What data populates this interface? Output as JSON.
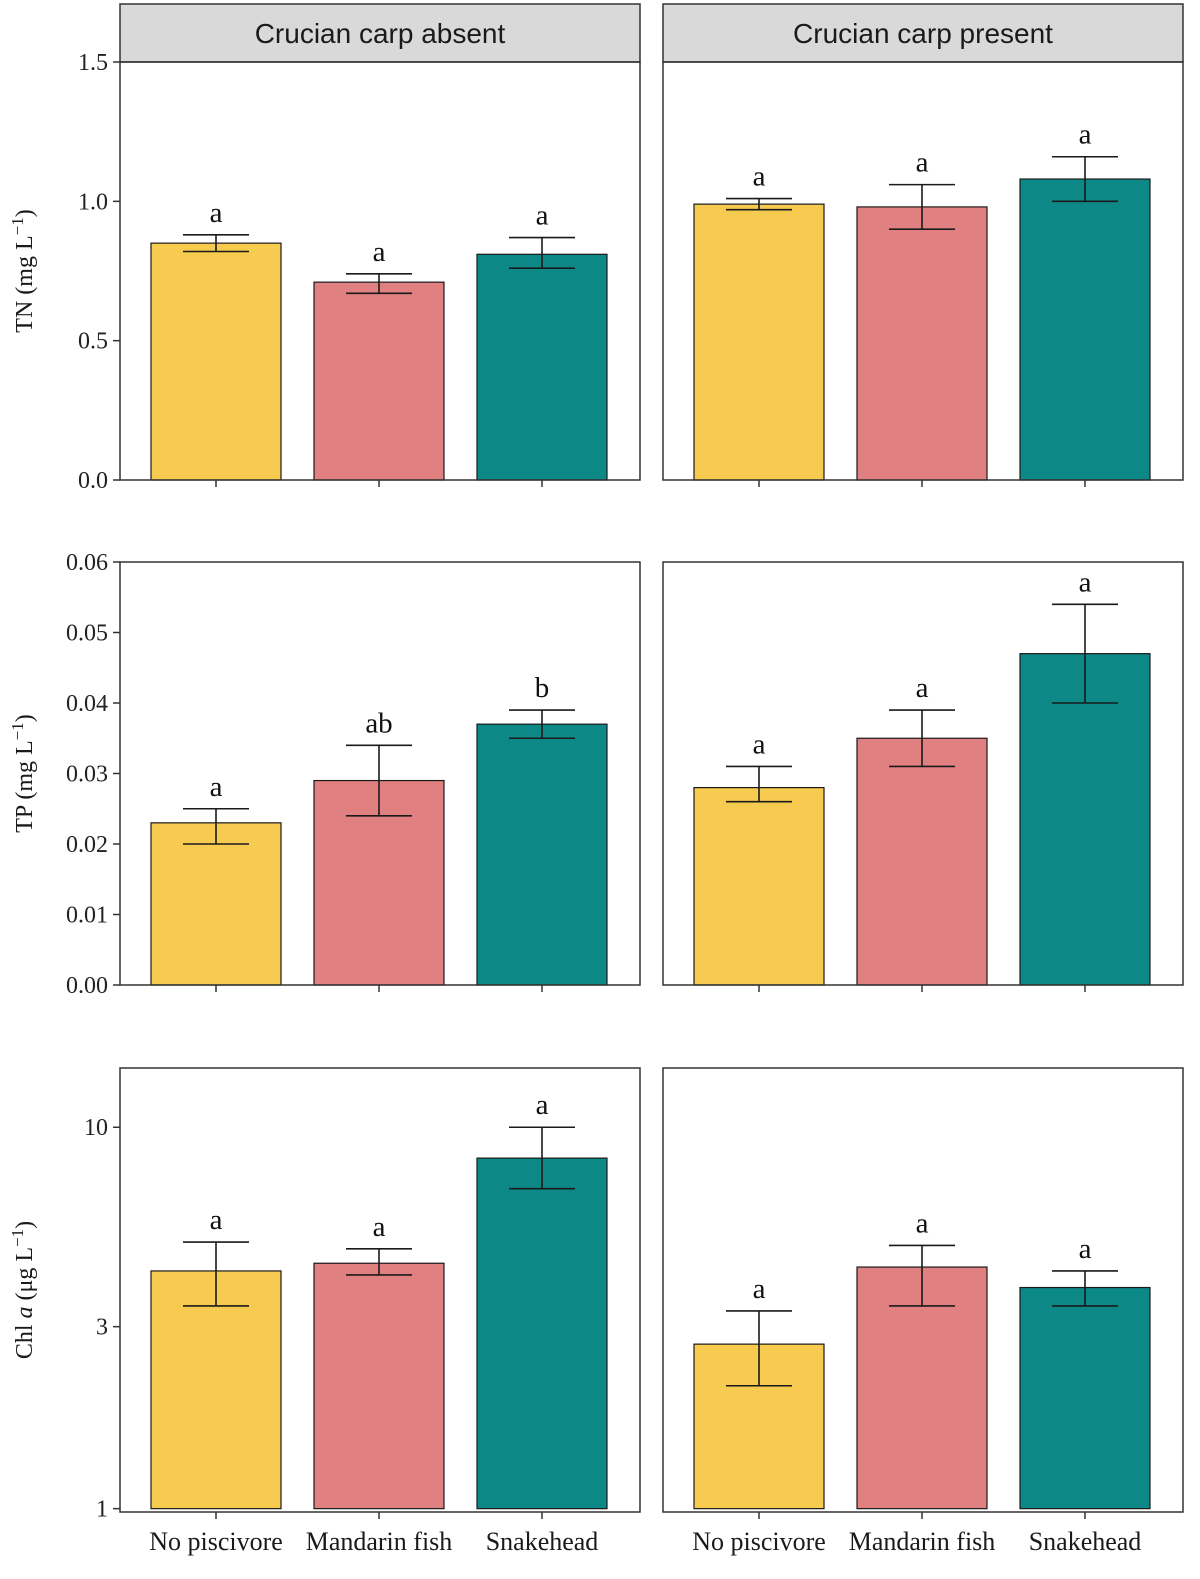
{
  "facets": [
    "Crucian carp absent",
    "Crucian carp present"
  ],
  "categories": [
    "No piscivore",
    "Mandarin fish",
    "Snakehead"
  ],
  "colors": {
    "No piscivore": "#F7CA50",
    "Mandarin fish": "#E08080",
    "Snakehead": "#0C8886",
    "strip": "#D9D9D9",
    "axis": "#333333"
  },
  "chart_data": [
    {
      "type": "bar",
      "ylabel": {
        "prefix": "TN (mg L",
        "sup": "−1",
        "suffix": ")"
      },
      "scale": "linear",
      "ylim": [
        0,
        1.5
      ],
      "yticks": [
        0,
        0.5,
        1.0,
        1.5
      ],
      "ytick_labels": [
        "0.0",
        "0.5",
        "1.0",
        "1.5"
      ],
      "series": [
        {
          "facet": "Crucian carp absent",
          "values": [
            0.85,
            0.71,
            0.81
          ],
          "err_low": [
            0.82,
            0.67,
            0.76
          ],
          "err_high": [
            0.88,
            0.74,
            0.87
          ],
          "letters": [
            "a",
            "a",
            "a"
          ]
        },
        {
          "facet": "Crucian carp present",
          "values": [
            0.99,
            0.98,
            1.08
          ],
          "err_low": [
            0.97,
            0.9,
            1.0
          ],
          "err_high": [
            1.01,
            1.06,
            1.16
          ],
          "letters": [
            "a",
            "a",
            "a"
          ]
        }
      ]
    },
    {
      "type": "bar",
      "ylabel": {
        "prefix": "TP (mg L",
        "sup": "−1",
        "suffix": ")"
      },
      "scale": "linear",
      "ylim": [
        0,
        0.06
      ],
      "yticks": [
        0,
        0.01,
        0.02,
        0.03,
        0.04,
        0.05,
        0.06
      ],
      "ytick_labels": [
        "0.00",
        "0.01",
        "0.02",
        "0.03",
        "0.04",
        "0.05",
        "0.06"
      ],
      "series": [
        {
          "facet": "Crucian carp absent",
          "values": [
            0.023,
            0.029,
            0.037
          ],
          "err_low": [
            0.02,
            0.024,
            0.035
          ],
          "err_high": [
            0.025,
            0.034,
            0.039
          ],
          "letters": [
            "a",
            "ab",
            "b"
          ]
        },
        {
          "facet": "Crucian carp present",
          "values": [
            0.028,
            0.035,
            0.047
          ],
          "err_low": [
            0.026,
            0.031,
            0.04
          ],
          "err_high": [
            0.031,
            0.039,
            0.054
          ],
          "letters": [
            "a",
            "a",
            "a"
          ]
        }
      ]
    },
    {
      "type": "bar",
      "ylabel": {
        "prefix": "Chl ",
        "italic": "a",
        "mid": " (μg L",
        "sup": "−1",
        "suffix": ")"
      },
      "scale": "log",
      "ylim": [
        0.98,
        14.3
      ],
      "yticks": [
        1,
        3,
        10
      ],
      "ytick_labels": [
        "1",
        "3",
        "10"
      ],
      "series": [
        {
          "facet": "Crucian carp absent",
          "values": [
            4.2,
            4.4,
            8.3
          ],
          "err_low": [
            3.4,
            4.1,
            6.9
          ],
          "err_high": [
            5.0,
            4.8,
            10.0
          ],
          "letters": [
            "a",
            "a",
            "a"
          ]
        },
        {
          "facet": "Crucian carp present",
          "values": [
            2.7,
            4.3,
            3.8
          ],
          "err_low": [
            2.1,
            3.4,
            3.4
          ],
          "err_high": [
            3.3,
            4.9,
            4.2
          ],
          "letters": [
            "a",
            "a",
            "a"
          ]
        }
      ]
    }
  ]
}
